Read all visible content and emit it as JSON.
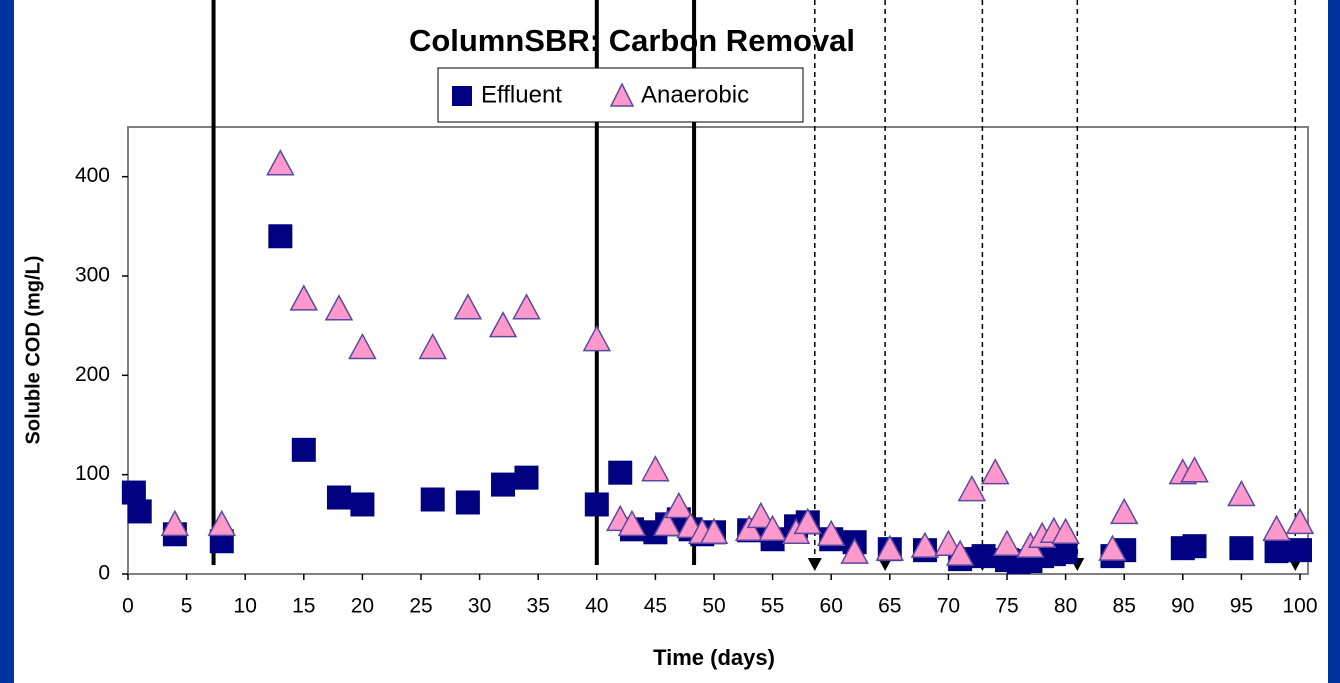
{
  "chart_data": {
    "type": "scatter",
    "title": "ColumnSBR: Carbon Removal",
    "x_label": "Time (days)",
    "y_label": "Soluble COD (mg/L)",
    "xlim": [
      0,
      100
    ],
    "ylim": [
      0,
      450
    ],
    "xticks": [
      0,
      5,
      10,
      15,
      20,
      25,
      30,
      35,
      40,
      45,
      50,
      55,
      60,
      65,
      70,
      75,
      80,
      85,
      90,
      95,
      100
    ],
    "yticks": [
      0,
      100,
      200,
      300,
      400
    ],
    "solid_lines": [
      7.3,
      40,
      48.3
    ],
    "dashed_lines": [
      58.6,
      64.6,
      72.9,
      81,
      99.6
    ],
    "series": [
      {
        "name": "Effluent",
        "color": "#000080",
        "marker": "square",
        "x": [
          0.5,
          1,
          4,
          8,
          13,
          15,
          18,
          20,
          26,
          29,
          32,
          34,
          40,
          42,
          43,
          45,
          46,
          47,
          48,
          49,
          50,
          53,
          55,
          57,
          58,
          60,
          62,
          65,
          68,
          71,
          73,
          75,
          76,
          77,
          78,
          79,
          80,
          84,
          85,
          90,
          91,
          95,
          98,
          100
        ],
        "values": [
          82,
          63,
          40,
          33,
          340,
          125,
          77,
          70,
          75,
          72,
          90,
          97,
          70,
          102,
          45,
          42,
          50,
          55,
          45,
          40,
          42,
          44,
          35,
          48,
          52,
          35,
          32,
          25,
          24,
          15,
          18,
          14,
          12,
          13,
          18,
          20,
          22,
          18,
          24,
          26,
          28,
          26,
          23,
          24
        ]
      },
      {
        "name": "Anaerobic",
        "color": "#ff99cc",
        "marker": "triangle",
        "x": [
          4,
          8,
          13,
          15,
          18,
          20,
          26,
          29,
          32,
          34,
          40,
          42,
          43,
          45,
          46,
          47,
          48,
          49,
          50,
          53,
          54,
          55,
          57,
          58,
          60,
          62,
          65,
          68,
          70,
          71,
          72,
          74,
          75,
          77,
          78,
          79,
          80,
          84,
          85,
          90,
          91,
          95,
          98,
          100
        ],
        "values": [
          50,
          50,
          413,
          277,
          267,
          228,
          228,
          268,
          250,
          268,
          236,
          55,
          50,
          105,
          50,
          68,
          48,
          42,
          42,
          45,
          58,
          45,
          42,
          52,
          40,
          22,
          25,
          28,
          30,
          20,
          85,
          102,
          30,
          28,
          38,
          43,
          42,
          25,
          62,
          102,
          104,
          80,
          45,
          52
        ]
      }
    ]
  }
}
